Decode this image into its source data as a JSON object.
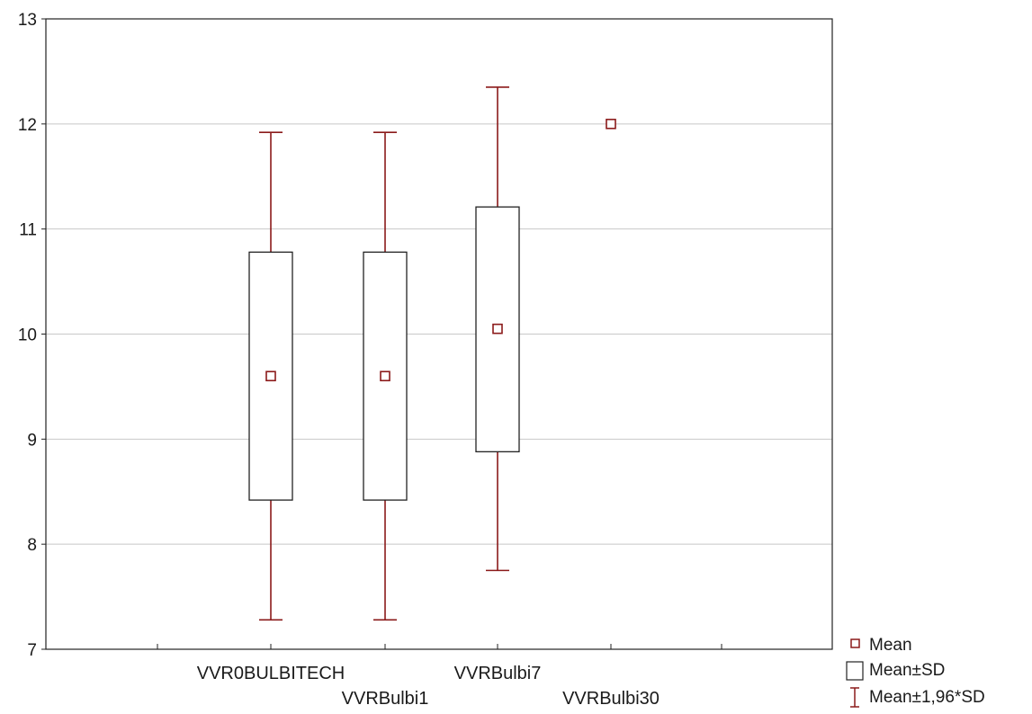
{
  "chart_data": {
    "type": "box",
    "categories": [
      "VVR0BULBITECH",
      "VVRBulbi1",
      "VVRBulbi7",
      "VVRBulbi30"
    ],
    "mean": [
      9.6,
      9.6,
      10.05,
      12.0
    ],
    "mean_minus_sd": [
      8.42,
      8.42,
      8.88,
      12.0
    ],
    "mean_plus_sd": [
      10.78,
      10.78,
      11.21,
      12.0
    ],
    "mean_minus_1_96_sd": [
      7.28,
      7.28,
      7.75,
      12.0
    ],
    "mean_plus_1_96_sd": [
      11.92,
      11.92,
      12.35,
      12.0
    ],
    "ylim": [
      7,
      13
    ],
    "yticks": [
      "7",
      "8",
      "9",
      "10",
      "11",
      "12",
      "13"
    ],
    "grid": true,
    "legend": {
      "placement": "bottom-right",
      "entries": [
        "Mean",
        "Mean±SD",
        "Mean±1,96*SD"
      ]
    },
    "colors": {
      "mean_marker": "#8b1a1a",
      "whisker": "#8b1a1a",
      "box": "#222222",
      "grid": "#c8c8c8",
      "axis": "#222222"
    }
  }
}
